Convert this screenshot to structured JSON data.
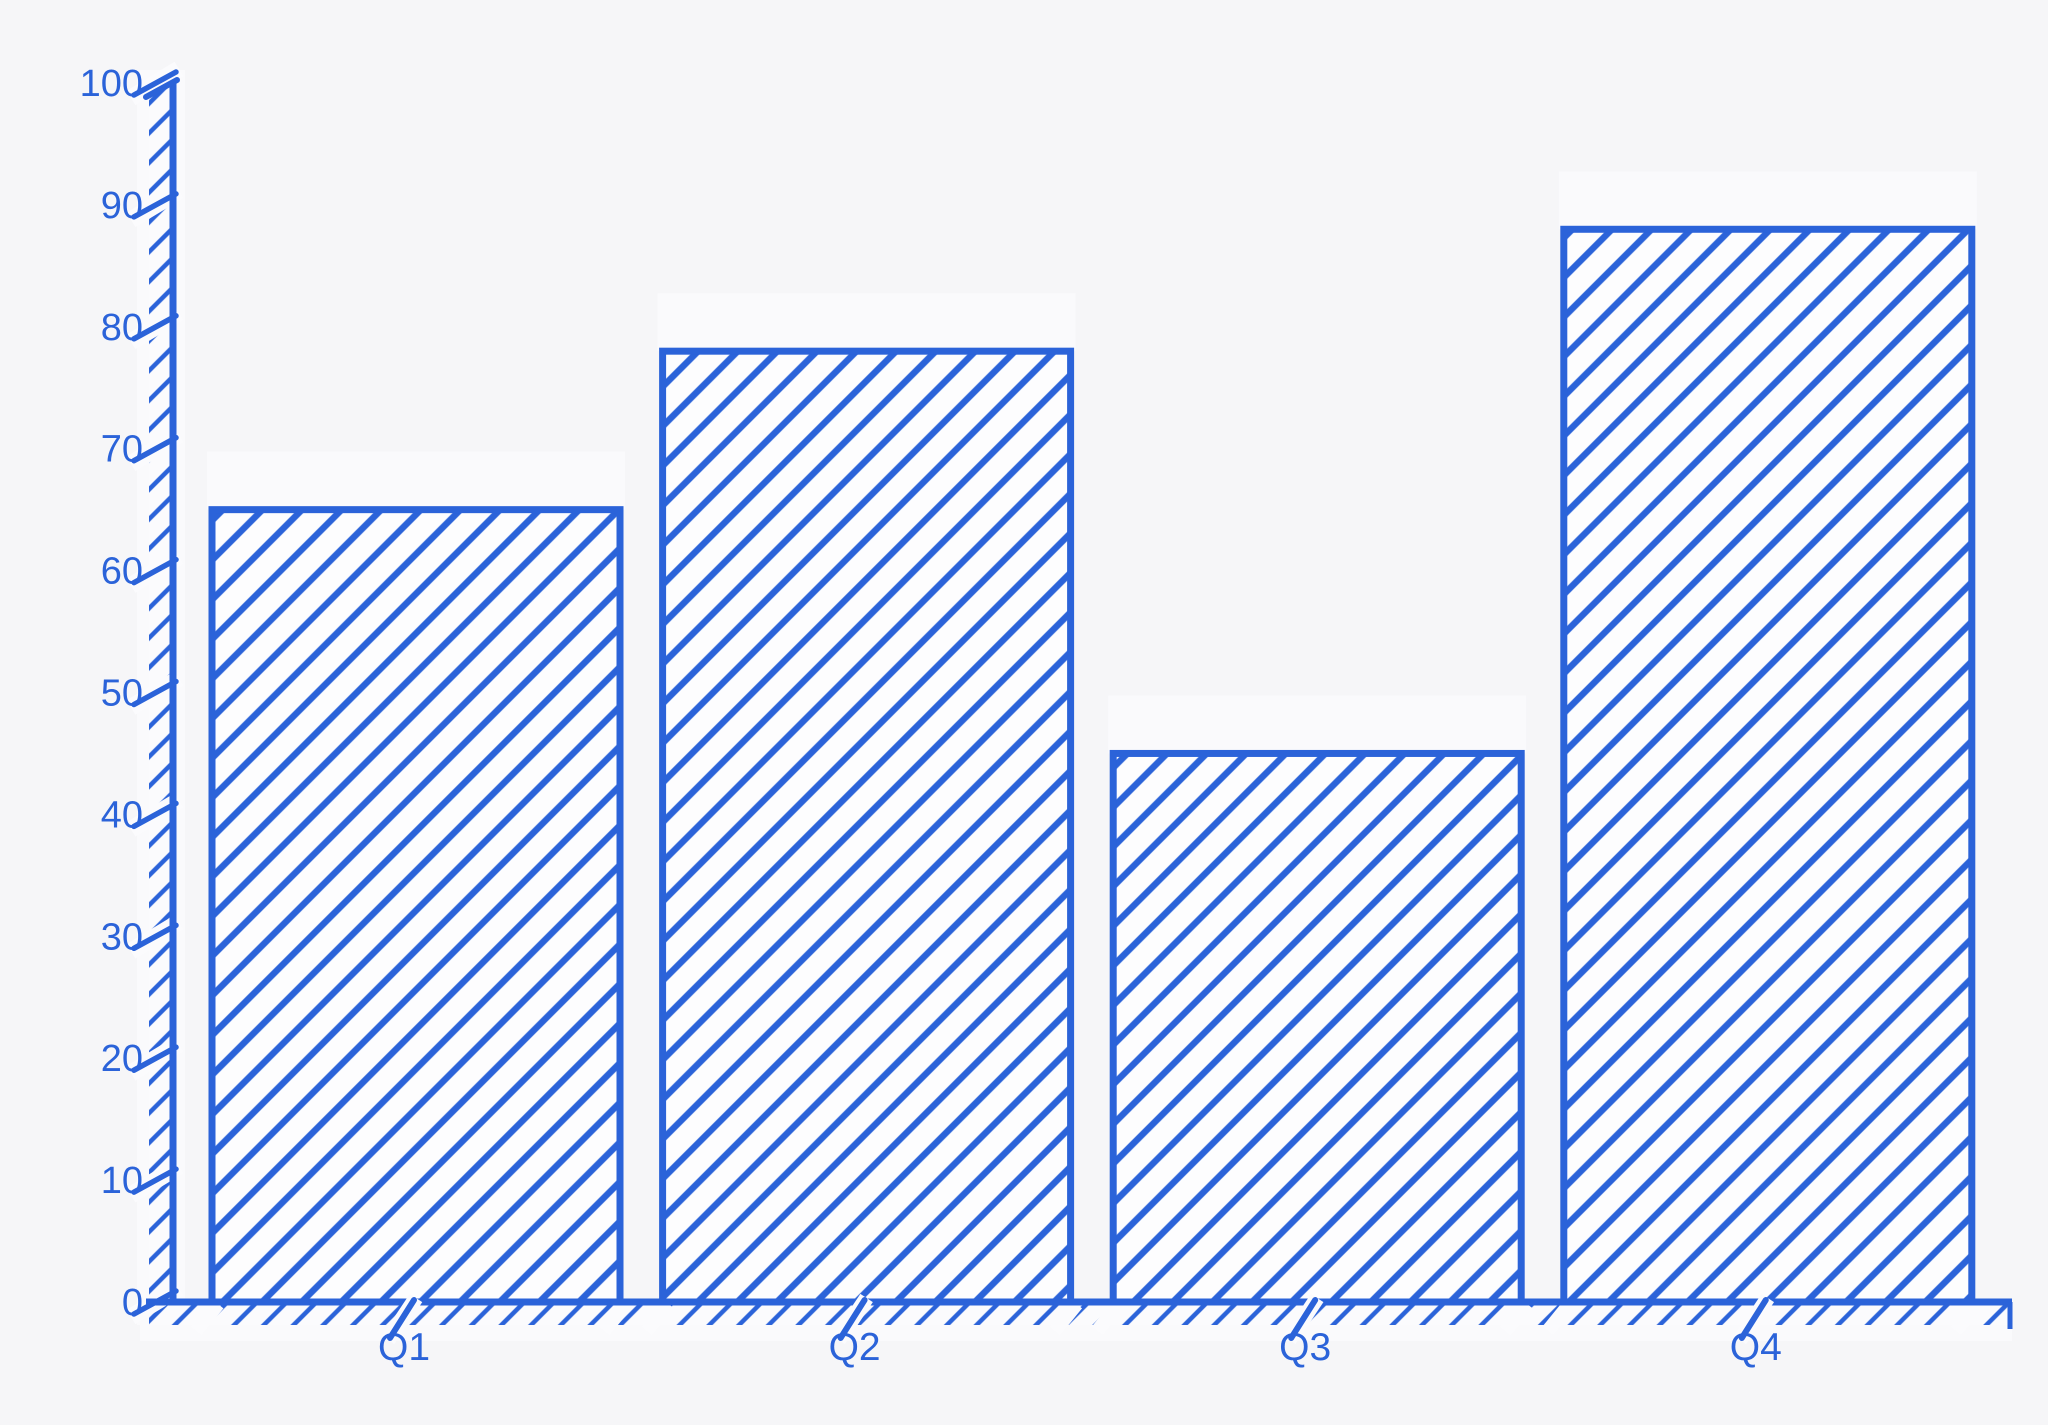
{
  "chart_data": {
    "type": "bar",
    "title": "",
    "xlabel": "",
    "ylabel": "",
    "categories": [
      "Q1",
      "Q2",
      "Q3",
      "Q4"
    ],
    "values": [
      65,
      78,
      45,
      88
    ],
    "ylim": [
      0,
      100
    ],
    "yticks": [
      0,
      10,
      20,
      30,
      40,
      50,
      60,
      70,
      80,
      90,
      100
    ],
    "grid": false,
    "legend_position": "none",
    "style": "hand-drawn hatched bars",
    "colors": {
      "accent_blue": "#2b63d9",
      "background": "#f6f6f8",
      "bar_fill": "#fdfdfe",
      "halo_white": "#fbfbfd"
    }
  }
}
